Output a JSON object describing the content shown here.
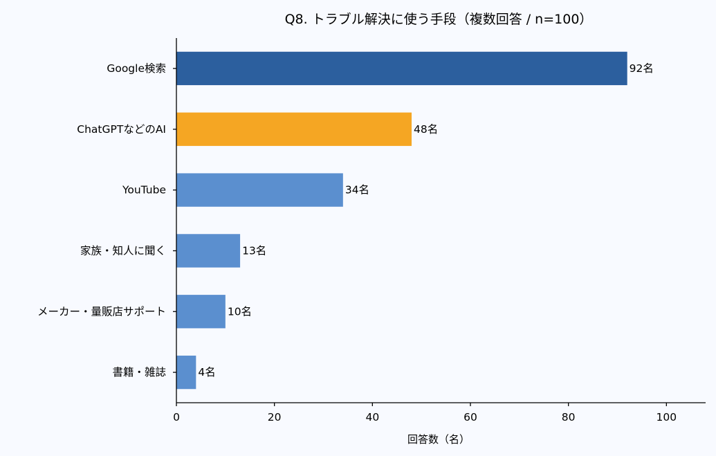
{
  "chart_data": {
    "type": "bar",
    "orientation": "horizontal",
    "title": "Q8. トラブル解決に使う手段（複数回答 / n=100）",
    "xlabel": "回答数（名）",
    "ylabel": "",
    "xlim": [
      0,
      108
    ],
    "xticks": [
      0,
      20,
      40,
      60,
      80,
      100
    ],
    "xtick_labels": [
      "0",
      "20",
      "40",
      "60",
      "80",
      "100"
    ],
    "grid": false,
    "legend": "none",
    "value_suffix": "名",
    "categories": [
      "Google検索",
      "ChatGPTなどのAI",
      "YouTube",
      "家族・知人に聞く",
      "メーカー・量販店サポート",
      "書籍・雑誌"
    ],
    "values": [
      92,
      48,
      34,
      13,
      10,
      4
    ],
    "value_labels": [
      "92名",
      "48名",
      "34名",
      "13名",
      "10名",
      "4名"
    ],
    "colors": [
      "#2c5f9e",
      "#f5a623",
      "#5b8fcf",
      "#5b8fcf",
      "#5b8fcf",
      "#5b8fcf"
    ]
  }
}
